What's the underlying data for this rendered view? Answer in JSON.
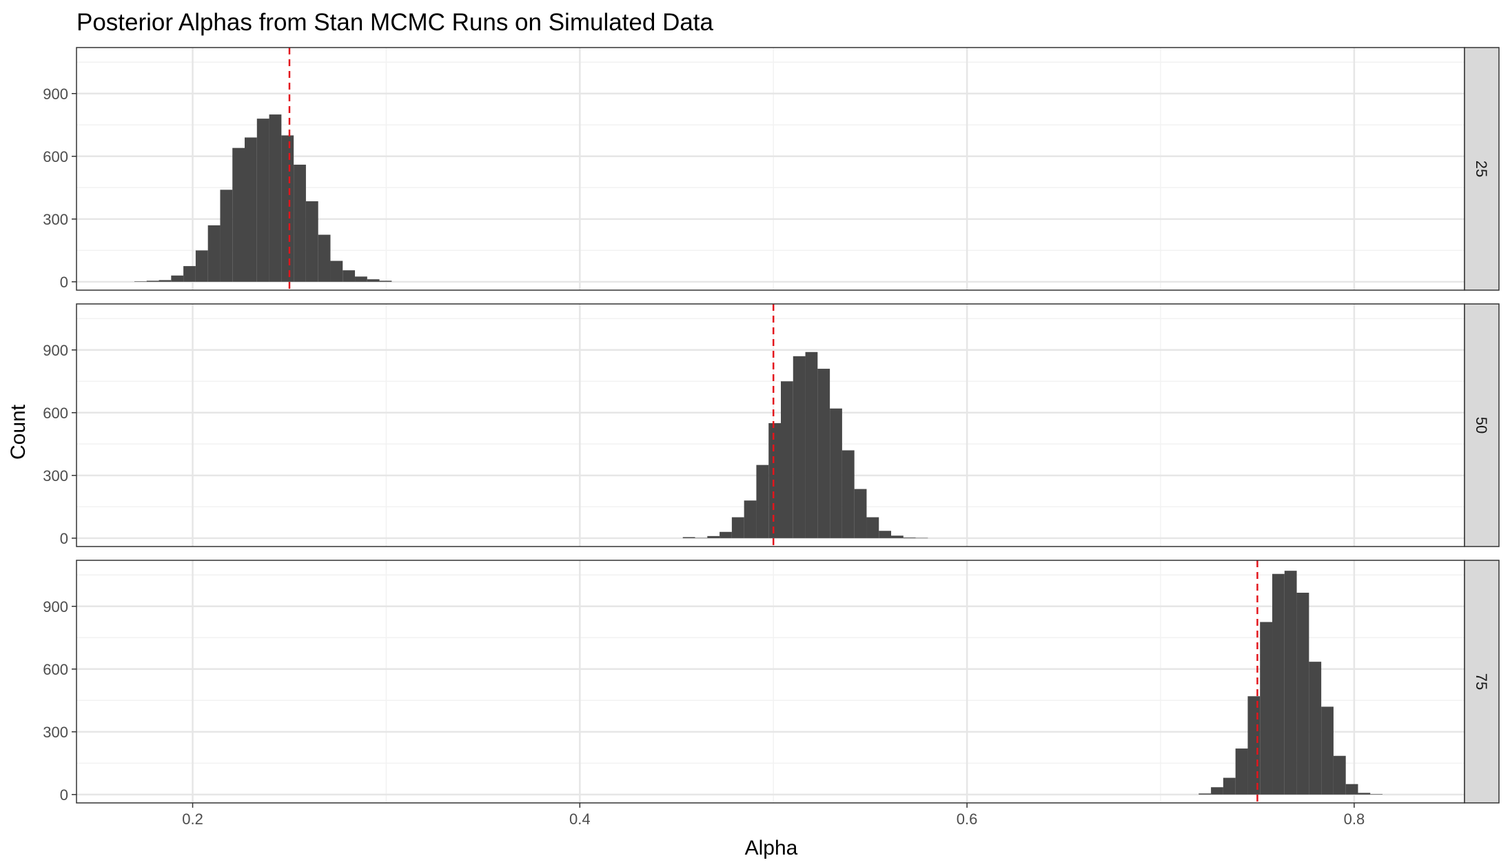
{
  "chart_data": {
    "type": "histogram",
    "title": "Posterior Alphas from Stan MCMC Runs on Simulated Data",
    "xlabel": "Alpha",
    "ylabel": "Count",
    "xlim": [
      0.14,
      0.857
    ],
    "ylim": [
      -40,
      1120
    ],
    "x_ticks": [
      0.2,
      0.4,
      0.6,
      0.8
    ],
    "x_tick_labels": [
      "0.2",
      "0.4",
      "0.6",
      "0.8"
    ],
    "y_ticks": [
      0,
      300,
      600,
      900
    ],
    "y_tick_labels": [
      "0",
      "300",
      "600",
      "900"
    ],
    "grid": true,
    "facet_strip_position": "right",
    "bar_color": "#474747",
    "reference_line_color": "#e3151c",
    "reference_line_style": "dashed",
    "panels": [
      {
        "strip_label": "25",
        "reference_line": 0.25,
        "bin_start": 0.1699,
        "bin_width": 0.00633,
        "counts": [
          2,
          5,
          8,
          30,
          75,
          150,
          270,
          440,
          640,
          690,
          780,
          800,
          700,
          560,
          385,
          225,
          100,
          55,
          25,
          12,
          5
        ]
      },
      {
        "strip_label": "50",
        "reference_line": 0.5,
        "bin_start": 0.4532,
        "bin_width": 0.00633,
        "counts": [
          5,
          1,
          10,
          30,
          100,
          180,
          350,
          550,
          750,
          870,
          890,
          810,
          620,
          420,
          235,
          100,
          35,
          12,
          3,
          1
        ]
      },
      {
        "strip_label": "75",
        "reference_line": 0.75,
        "bin_start": 0.7197,
        "bin_width": 0.00633,
        "counts": [
          5,
          35,
          80,
          220,
          470,
          825,
          1055,
          1070,
          965,
          635,
          420,
          185,
          50,
          8,
          2
        ]
      }
    ]
  }
}
